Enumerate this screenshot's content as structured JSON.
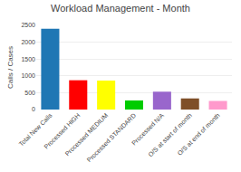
{
  "chart_data": {
    "type": "bar",
    "title": "Workload Management - Month",
    "ylabel": "Calls / Cases",
    "categories": [
      "Total New Calls",
      "Processed HIGH",
      "Processed MEDIUM",
      "Processed STANDARD",
      "Processed N/A",
      "O/S at start of month",
      "O/S at end of month"
    ],
    "values": [
      2400,
      870,
      860,
      270,
      530,
      330,
      255
    ],
    "colors": [
      "#1f77b4",
      "#ff0000",
      "#ffff00",
      "#00cc00",
      "#9966cc",
      "#7f4f28",
      "#ff99cc"
    ],
    "ylim": [
      0,
      2500
    ],
    "yticks": [
      0,
      500,
      1000,
      1500,
      2000,
      2500
    ],
    "grid": true
  }
}
